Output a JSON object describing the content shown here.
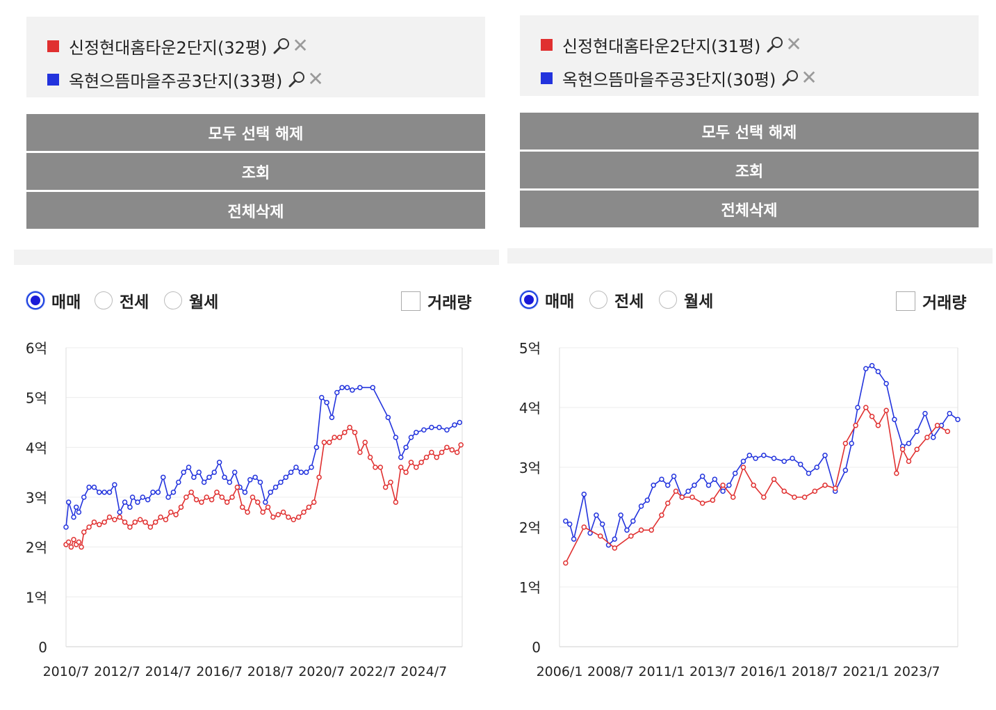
{
  "colors": {
    "red": "#e03030",
    "blue": "#2233dd",
    "button_bg": "#8a8a8a",
    "panel_bg": "#f2f2f2"
  },
  "icons": {
    "zoom": "magnifier-icon",
    "close": "close-icon"
  },
  "panels": [
    {
      "legend": [
        {
          "label": "신정현대홈타운2단지(32평)",
          "color": "#e03030"
        },
        {
          "label": "옥현으뜸마을주공3단지(33평)",
          "color": "#2233dd"
        }
      ],
      "buttons": [
        "모두 선택 해제",
        "조회",
        "전체삭제"
      ],
      "options": {
        "radio": [
          "매매",
          "전세",
          "월세"
        ],
        "selected": "매매",
        "checkbox": "거래량",
        "checkbox_checked": false
      }
    },
    {
      "legend": [
        {
          "label": "신정현대홈타운2단지(31평)",
          "color": "#e03030"
        },
        {
          "label": "옥현으뜸마을주공3단지(30평)",
          "color": "#2233dd"
        }
      ],
      "buttons": [
        "모두 선택 해제",
        "조회",
        "전체삭제"
      ],
      "options": {
        "radio": [
          "매매",
          "전세",
          "월세"
        ],
        "selected": "매매",
        "checkbox": "거래량",
        "checkbox_checked": false
      }
    }
  ],
  "chart_data": [
    {
      "type": "line",
      "x_unit": "year",
      "xlim": [
        2010.5,
        2026.0
      ],
      "xticks": [
        2010.5,
        2012.5,
        2014.5,
        2016.5,
        2018.5,
        2020.5,
        2022.5,
        2024.5
      ],
      "xtick_labels": [
        "2010/7",
        "2012/7",
        "2014/7",
        "2016/7",
        "2018/7",
        "2020/7",
        "2022/7",
        "2024/7"
      ],
      "ylim": [
        0,
        6
      ],
      "yticks": [
        0,
        1,
        2,
        3,
        4,
        5,
        6
      ],
      "ytick_labels": [
        "0",
        "1억",
        "2억",
        "3억",
        "4억",
        "5억",
        "6억"
      ],
      "grid": true,
      "series": [
        {
          "color": "#2233dd",
          "x": [
            2010.5,
            2010.6,
            2010.8,
            2010.9,
            2011.0,
            2011.2,
            2011.4,
            2011.6,
            2011.8,
            2012.0,
            2012.2,
            2012.4,
            2012.6,
            2012.8,
            2013.0,
            2013.1,
            2013.3,
            2013.5,
            2013.7,
            2013.9,
            2014.1,
            2014.3,
            2014.5,
            2014.7,
            2014.9,
            2015.1,
            2015.3,
            2015.5,
            2015.7,
            2015.9,
            2016.1,
            2016.3,
            2016.5,
            2016.7,
            2016.9,
            2017.1,
            2017.3,
            2017.5,
            2017.7,
            2017.9,
            2018.1,
            2018.3,
            2018.5,
            2018.7,
            2018.9,
            2019.1,
            2019.3,
            2019.5,
            2019.7,
            2019.9,
            2020.1,
            2020.3,
            2020.5,
            2020.7,
            2020.9,
            2021.1,
            2021.3,
            2021.5,
            2021.7,
            2022.0,
            2022.5,
            2023.1,
            2023.4,
            2023.6,
            2023.8,
            2024.0,
            2024.2,
            2024.5,
            2024.8,
            2025.1,
            2025.4,
            2025.7,
            2025.9
          ],
          "y": [
            2.4,
            2.9,
            2.6,
            2.8,
            2.7,
            3.0,
            3.2,
            3.2,
            3.1,
            3.1,
            3.1,
            3.25,
            2.7,
            2.9,
            2.8,
            3.0,
            2.9,
            3.0,
            2.95,
            3.1,
            3.1,
            3.4,
            3.0,
            3.1,
            3.3,
            3.5,
            3.6,
            3.4,
            3.5,
            3.3,
            3.4,
            3.5,
            3.7,
            3.4,
            3.3,
            3.5,
            3.2,
            3.1,
            3.35,
            3.4,
            3.3,
            2.9,
            3.1,
            3.2,
            3.3,
            3.4,
            3.5,
            3.6,
            3.5,
            3.5,
            3.6,
            4.0,
            5.0,
            4.9,
            4.6,
            5.1,
            5.2,
            5.2,
            5.15,
            5.2,
            5.2,
            4.6,
            4.2,
            3.8,
            4.0,
            4.2,
            4.3,
            4.35,
            4.4,
            4.4,
            4.35,
            4.45,
            4.5
          ]
        },
        {
          "color": "#e03030",
          "x": [
            2010.5,
            2010.6,
            2010.7,
            2010.8,
            2010.9,
            2011.0,
            2011.1,
            2011.2,
            2011.4,
            2011.6,
            2011.8,
            2012.0,
            2012.2,
            2012.4,
            2012.6,
            2012.8,
            2013.0,
            2013.2,
            2013.4,
            2013.6,
            2013.8,
            2014.0,
            2014.2,
            2014.4,
            2014.6,
            2014.8,
            2015.0,
            2015.2,
            2015.4,
            2015.6,
            2015.8,
            2016.0,
            2016.2,
            2016.4,
            2016.6,
            2016.8,
            2017.0,
            2017.2,
            2017.4,
            2017.6,
            2017.8,
            2018.0,
            2018.2,
            2018.4,
            2018.6,
            2018.8,
            2019.0,
            2019.2,
            2019.4,
            2019.6,
            2019.8,
            2020.0,
            2020.2,
            2020.4,
            2020.6,
            2020.8,
            2021.0,
            2021.2,
            2021.4,
            2021.6,
            2021.8,
            2022.0,
            2022.2,
            2022.4,
            2022.6,
            2022.8,
            2023.0,
            2023.2,
            2023.4,
            2023.6,
            2023.8,
            2024.0,
            2024.2,
            2024.4,
            2024.6,
            2024.8,
            2025.0,
            2025.2,
            2025.4,
            2025.6,
            2025.8,
            2025.95
          ],
          "y": [
            2.05,
            2.1,
            2.0,
            2.15,
            2.05,
            2.1,
            2.0,
            2.3,
            2.4,
            2.5,
            2.45,
            2.5,
            2.6,
            2.55,
            2.6,
            2.5,
            2.4,
            2.5,
            2.55,
            2.5,
            2.4,
            2.5,
            2.6,
            2.55,
            2.7,
            2.65,
            2.8,
            3.0,
            3.1,
            2.95,
            2.9,
            3.0,
            2.95,
            3.1,
            3.0,
            2.9,
            3.0,
            3.2,
            2.8,
            2.7,
            3.0,
            2.9,
            2.7,
            2.8,
            2.6,
            2.65,
            2.7,
            2.6,
            2.55,
            2.6,
            2.7,
            2.8,
            2.9,
            3.4,
            4.1,
            4.1,
            4.2,
            4.2,
            4.3,
            4.4,
            4.3,
            3.9,
            4.1,
            3.8,
            3.6,
            3.6,
            3.2,
            3.3,
            2.9,
            3.6,
            3.5,
            3.7,
            3.6,
            3.7,
            3.8,
            3.9,
            3.8,
            3.9,
            4.0,
            3.95,
            3.9,
            4.05
          ]
        }
      ]
    },
    {
      "type": "line",
      "x_unit": "year",
      "xlim": [
        2006.0,
        2025.5
      ],
      "xticks": [
        2006.0,
        2008.5,
        2011.0,
        2013.5,
        2016.0,
        2018.5,
        2021.0,
        2023.5
      ],
      "xtick_labels": [
        "2006/1",
        "2008/7",
        "2011/1",
        "2013/7",
        "2016/1",
        "2018/7",
        "2021/1",
        "2023/7"
      ],
      "ylim": [
        0,
        5
      ],
      "yticks": [
        0,
        1,
        2,
        3,
        4,
        5
      ],
      "ytick_labels": [
        "0",
        "1억",
        "2억",
        "3억",
        "4억",
        "5억"
      ],
      "grid": true,
      "series": [
        {
          "color": "#2233dd",
          "x": [
            2006.3,
            2006.5,
            2006.7,
            2007.2,
            2007.5,
            2007.8,
            2008.1,
            2008.4,
            2008.7,
            2009.0,
            2009.3,
            2009.6,
            2010.0,
            2010.3,
            2010.6,
            2011.0,
            2011.3,
            2011.6,
            2012.0,
            2012.3,
            2012.6,
            2013.0,
            2013.3,
            2013.6,
            2014.0,
            2014.3,
            2014.6,
            2015.0,
            2015.3,
            2015.6,
            2016.0,
            2016.5,
            2017.0,
            2017.4,
            2017.8,
            2018.2,
            2018.6,
            2019.0,
            2019.5,
            2020.0,
            2020.3,
            2020.6,
            2021.0,
            2021.3,
            2021.6,
            2022.0,
            2022.4,
            2022.8,
            2023.1,
            2023.5,
            2023.9,
            2024.3,
            2024.7,
            2025.1,
            2025.5
          ],
          "y": [
            2.1,
            2.05,
            1.8,
            2.55,
            1.9,
            2.2,
            2.05,
            1.7,
            1.8,
            2.2,
            1.95,
            2.1,
            2.35,
            2.45,
            2.7,
            2.8,
            2.7,
            2.85,
            2.5,
            2.6,
            2.7,
            2.85,
            2.7,
            2.8,
            2.6,
            2.7,
            2.9,
            3.1,
            3.2,
            3.15,
            3.2,
            3.15,
            3.1,
            3.15,
            3.05,
            2.9,
            3.0,
            3.2,
            2.6,
            2.95,
            3.4,
            4.0,
            4.65,
            4.7,
            4.6,
            4.4,
            3.8,
            3.35,
            3.4,
            3.6,
            3.9,
            3.5,
            3.7,
            3.9,
            3.8
          ]
        },
        {
          "color": "#e03030",
          "x": [
            2006.3,
            2007.2,
            2008.0,
            2008.7,
            2009.5,
            2010.0,
            2010.5,
            2011.0,
            2011.3,
            2011.7,
            2012.0,
            2012.5,
            2013.0,
            2013.5,
            2014.0,
            2014.5,
            2015.0,
            2015.5,
            2016.0,
            2016.5,
            2017.0,
            2017.5,
            2018.0,
            2018.5,
            2019.0,
            2019.5,
            2020.0,
            2020.5,
            2021.0,
            2021.3,
            2021.6,
            2022.0,
            2022.5,
            2022.8,
            2023.1,
            2023.5,
            2024.0,
            2024.5,
            2025.0
          ],
          "y": [
            1.4,
            2.0,
            1.85,
            1.65,
            1.85,
            1.95,
            1.95,
            2.2,
            2.4,
            2.6,
            2.5,
            2.5,
            2.4,
            2.45,
            2.7,
            2.5,
            3.0,
            2.7,
            2.5,
            2.8,
            2.6,
            2.5,
            2.5,
            2.6,
            2.7,
            2.65,
            3.4,
            3.7,
            4.0,
            3.85,
            3.7,
            3.95,
            2.9,
            3.3,
            3.1,
            3.3,
            3.5,
            3.7,
            3.6
          ]
        }
      ]
    }
  ]
}
